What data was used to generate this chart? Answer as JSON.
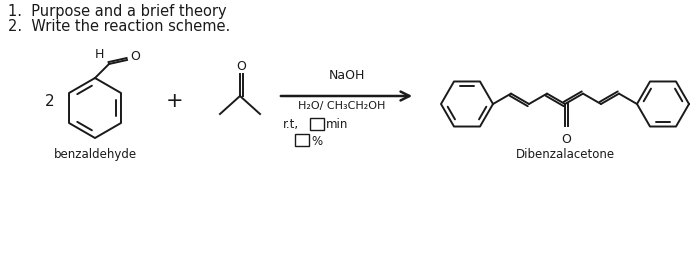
{
  "bg_color": "#ffffff",
  "title_line1": "1.  Purpose and a brief theory",
  "title_line2": "2.  Write the reaction scheme.",
  "label_2": "2",
  "label_plus": "+",
  "label_naoh": "NaOH",
  "label_solvent": "H₂O/ CH₃CH₂OH",
  "label_rt": "r.t,",
  "label_min": "min",
  "label_percent": "%",
  "label_benzaldehyde": "benzaldehyde",
  "label_dibenzalacetone": "Dibenzalacetone",
  "text_color": "#1a1a1a",
  "line_color": "#1a1a1a",
  "figsize": [
    7.0,
    2.56
  ],
  "dpi": 100
}
